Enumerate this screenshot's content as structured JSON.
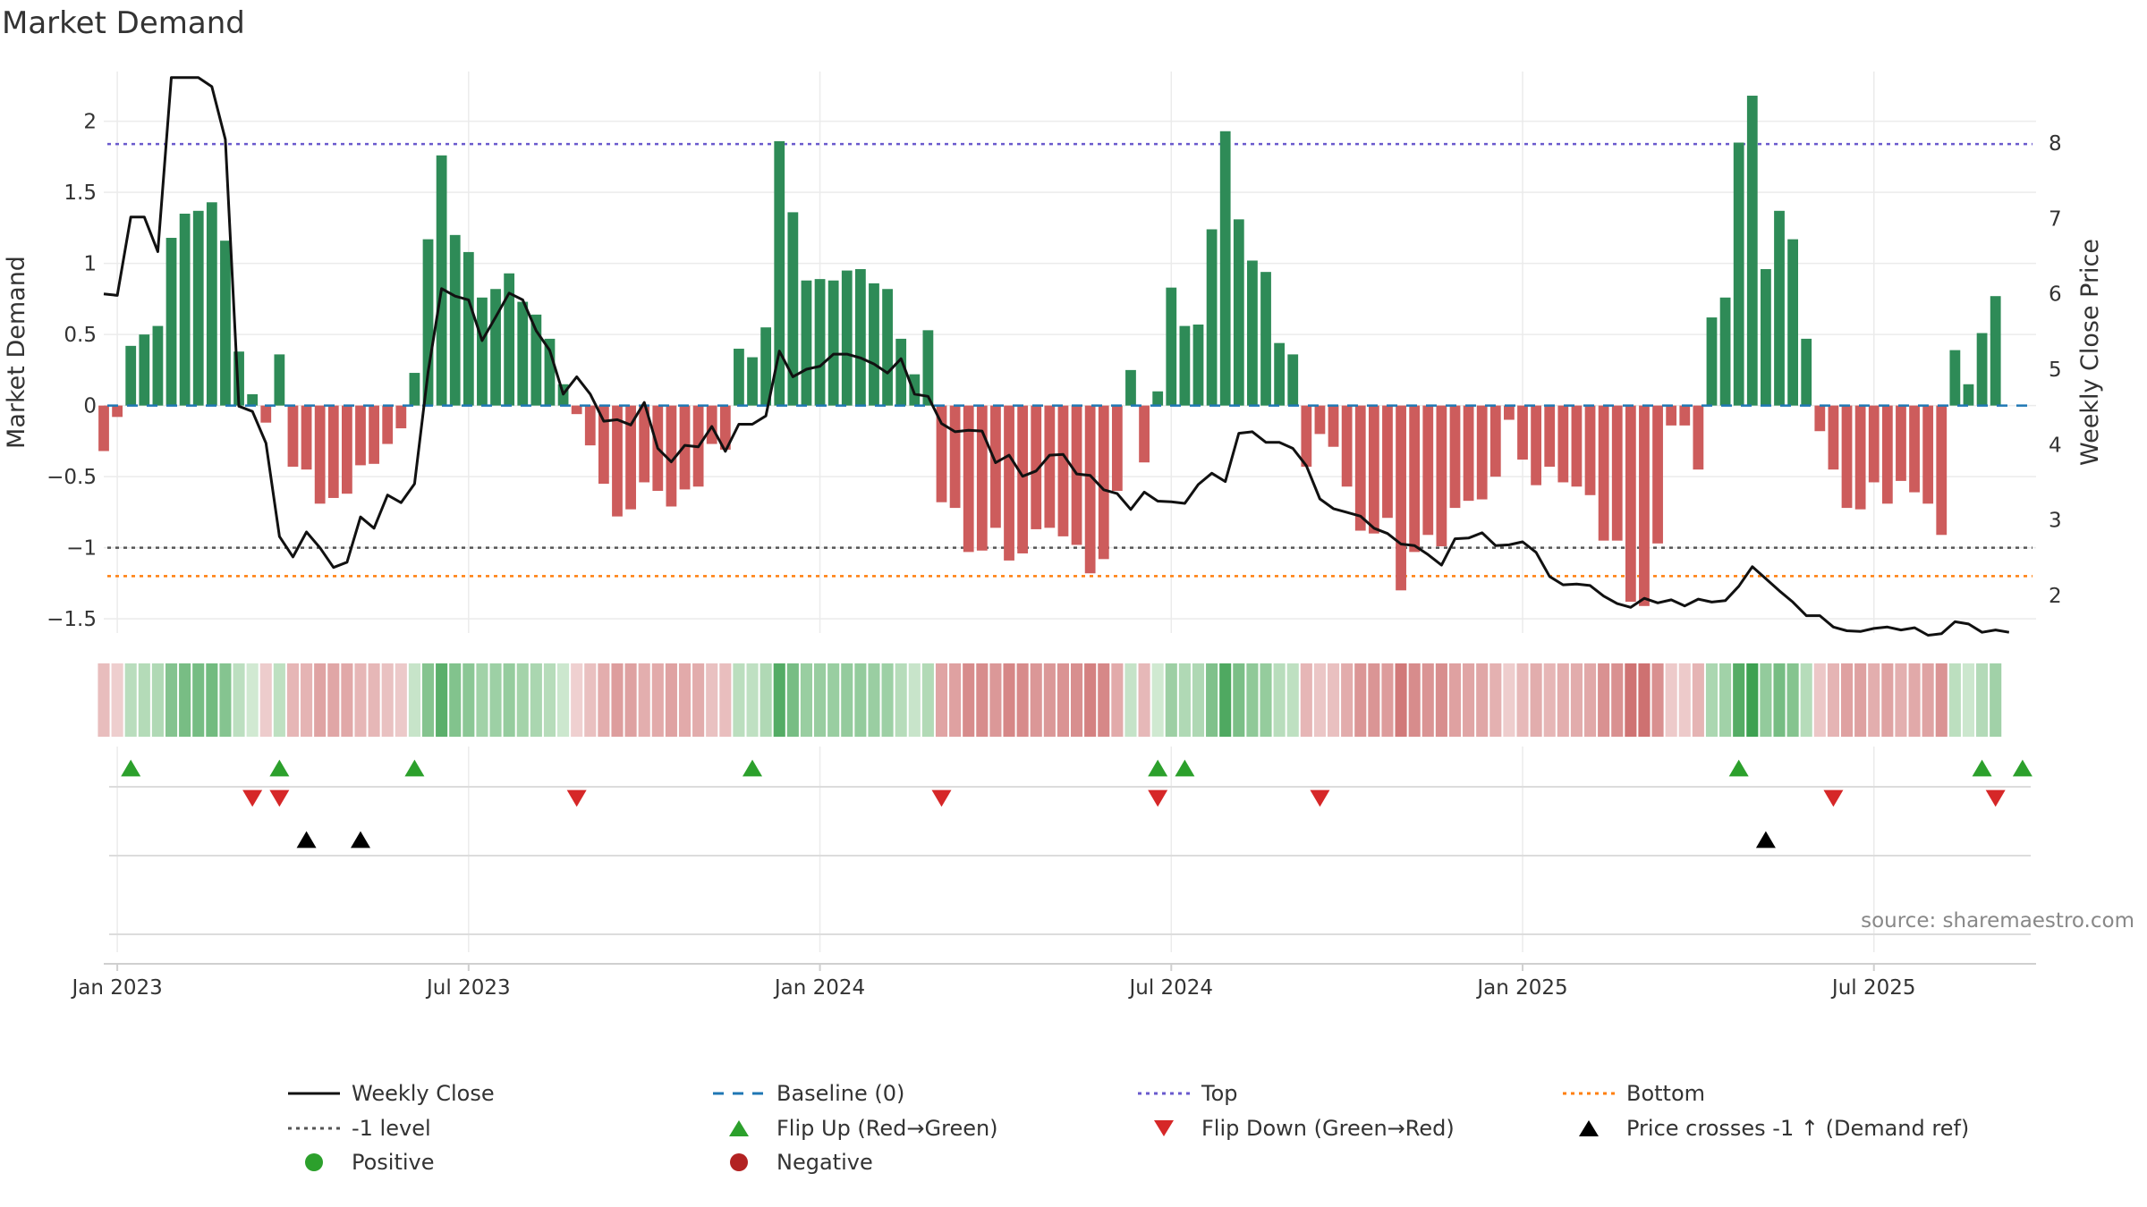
{
  "title": "Market Demand",
  "source": "source: sharemaestro.com",
  "colors": {
    "bar_positive": "#2e8b57",
    "bar_negative": "#cd5c5c",
    "close_line": "#111111",
    "baseline": "#1f77b4",
    "top": "#6a5acd",
    "minus1": "#555555",
    "bottom": "#ff7f0e",
    "flip_up": "#2ca02c",
    "flip_down": "#d62728",
    "cross": "#000000",
    "positive_dot": "#2ca02c",
    "negative_dot": "#b22222"
  },
  "chart_data": {
    "type": "bar",
    "title": "Market Demand",
    "ylabel": "Market Demand",
    "y2label": "Weekly Close Price",
    "ylim": [
      -1.6,
      2.35
    ],
    "y2lim": [
      1.5,
      8.95
    ],
    "yticks": [
      2,
      1.5,
      1,
      0.5,
      0,
      -0.5,
      -1,
      -1.5
    ],
    "ytick_labels": [
      "2",
      "1.5",
      "1",
      "0.5",
      "0",
      "−0.5",
      "−1",
      "−1.5"
    ],
    "y2ticks": [
      8,
      7,
      6,
      5,
      4,
      3,
      2
    ],
    "y2tick_labels": [
      "8",
      "7",
      "6",
      "5",
      "4",
      "3",
      "2"
    ],
    "xticks": [
      {
        "label": "Jan 2023",
        "week": 1
      },
      {
        "label": "Jul 2023",
        "week": 27
      },
      {
        "label": "Jan 2024",
        "week": 53
      },
      {
        "label": "Jul 2024",
        "week": 79
      },
      {
        "label": "Jan 2025",
        "week": 105
      },
      {
        "label": "Jul 2025",
        "week": 131
      }
    ],
    "week_range": [
      0,
      143
    ],
    "demand": [
      -0.32,
      -0.08,
      0.42,
      0.5,
      0.56,
      1.18,
      1.35,
      1.37,
      1.43,
      1.16,
      0.38,
      0.08,
      -0.12,
      0.36,
      -0.43,
      -0.45,
      -0.69,
      -0.65,
      -0.62,
      -0.42,
      -0.41,
      -0.27,
      -0.16,
      0.23,
      1.17,
      1.76,
      1.2,
      1.08,
      0.76,
      0.82,
      0.93,
      0.73,
      0.64,
      0.47,
      0.15,
      -0.06,
      -0.28,
      -0.55,
      -0.78,
      -0.73,
      -0.54,
      -0.6,
      -0.71,
      -0.59,
      -0.57,
      -0.27,
      -0.31,
      0.4,
      0.34,
      0.55,
      1.86,
      1.36,
      0.88,
      0.89,
      0.88,
      0.95,
      0.96,
      0.86,
      0.82,
      0.47,
      0.22,
      0.53,
      -0.68,
      -0.72,
      -1.03,
      -1.02,
      -0.86,
      -1.09,
      -1.04,
      -0.87,
      -0.86,
      -0.92,
      -0.98,
      -1.18,
      -1.08,
      -0.6,
      0.25,
      -0.4,
      0.1,
      0.83,
      0.56,
      0.57,
      1.24,
      1.93,
      1.31,
      1.02,
      0.94,
      0.44,
      0.36,
      -0.43,
      -0.2,
      -0.29,
      -0.57,
      -0.88,
      -0.9,
      -0.79,
      -1.3,
      -1.03,
      -0.91,
      -0.99,
      -0.72,
      -0.67,
      -0.66,
      -0.5,
      -0.1,
      -0.38,
      -0.56,
      -0.43,
      -0.54,
      -0.57,
      -0.63,
      -0.95,
      -0.95,
      -1.38,
      -1.41,
      -0.97,
      -0.14,
      -0.14,
      -0.45,
      0.62,
      0.76,
      1.85,
      2.18,
      0.96,
      1.37,
      1.17,
      0.47,
      -0.18,
      -0.45,
      -0.72,
      -0.73,
      -0.54,
      -0.69,
      -0.53,
      -0.61,
      -0.69,
      -0.91,
      0.39,
      0.15,
      0.51,
      0.77
    ],
    "weekly_close": [
      6,
      5.98,
      7.02,
      7.02,
      6.56,
      8.87,
      8.87,
      8.87,
      8.75,
      8.05,
      4.51,
      4.44,
      4.02,
      2.78,
      2.51,
      2.84,
      2.63,
      2.37,
      2.44,
      3.04,
      2.89,
      3.33,
      3.23,
      3.48,
      4.96,
      6.07,
      5.97,
      5.92,
      5.38,
      5.69,
      6.01,
      5.92,
      5.51,
      5.25,
      4.67,
      4.9,
      4.67,
      4.31,
      4.33,
      4.26,
      4.56,
      3.95,
      3.77,
      3.99,
      3.97,
      4.24,
      3.91,
      4.27,
      4.27,
      4.38,
      5.24,
      4.9,
      5,
      5.04,
      5.2,
      5.2,
      5.15,
      5.07,
      4.95,
      5.14,
      4.67,
      4.64,
      4.28,
      4.17,
      4.19,
      4.18,
      3.76,
      3.86,
      3.58,
      3.65,
      3.86,
      3.87,
      3.61,
      3.59,
      3.4,
      3.35,
      3.14,
      3.37,
      3.25,
      3.24,
      3.22,
      3.47,
      3.62,
      3.51,
      4.15,
      4.17,
      4.03,
      4.03,
      3.95,
      3.72,
      3.28,
      3.15,
      3.1,
      3.05,
      2.89,
      2.82,
      2.68,
      2.66,
      2.54,
      2.4,
      2.75,
      2.76,
      2.83,
      2.66,
      2.67,
      2.71,
      2.57,
      2.25,
      2.14,
      2.15,
      2.13,
      1.99,
      1.89,
      1.84,
      1.96,
      1.9,
      1.94,
      1.86,
      1.95,
      1.91,
      1.93,
      2.12,
      2.38,
      2.22,
      2.06,
      1.91,
      1.73,
      1.73,
      1.58,
      1.53,
      1.52,
      1.56,
      1.58,
      1.54,
      1.57,
      1.47,
      1.49,
      1.65,
      1.62,
      1.51,
      1.54,
      1.51
    ],
    "flip_up_weeks": [
      2,
      13,
      23,
      48,
      78,
      80,
      121,
      139,
      142
    ],
    "flip_down_weeks": [
      11,
      13,
      35,
      62,
      78,
      90,
      128,
      140
    ],
    "cross_weeks": [
      15,
      19,
      123
    ],
    "reference_lines": [
      {
        "name": "Top",
        "value": 1.84
      },
      {
        "name": "-1 level",
        "value": -1.0
      },
      {
        "name": "Bottom",
        "value": -1.2
      },
      {
        "name": "Baseline (0)",
        "value": 0
      }
    ]
  },
  "legend": [
    {
      "label": "Weekly Close",
      "kind": "line-solid",
      "color_key": "close_line"
    },
    {
      "label": "Baseline (0)",
      "kind": "line-dash",
      "color_key": "baseline"
    },
    {
      "label": "Top",
      "kind": "line-dot",
      "color_key": "top"
    },
    {
      "label": "Bottom",
      "kind": "line-dot",
      "color_key": "bottom"
    },
    {
      "label": "-1 level",
      "kind": "line-dot",
      "color_key": "minus1"
    },
    {
      "label": "Flip Up (Red→Green)",
      "kind": "tri-up",
      "color_key": "flip_up"
    },
    {
      "label": "Flip Down (Green→Red)",
      "kind": "tri-down",
      "color_key": "flip_down"
    },
    {
      "label": "Price crosses -1 ↑ (Demand ref)",
      "kind": "tri-up",
      "color_key": "cross"
    },
    {
      "label": "Positive",
      "kind": "dot",
      "color_key": "positive_dot"
    },
    {
      "label": "Negative",
      "kind": "dot",
      "color_key": "negative_dot"
    }
  ]
}
